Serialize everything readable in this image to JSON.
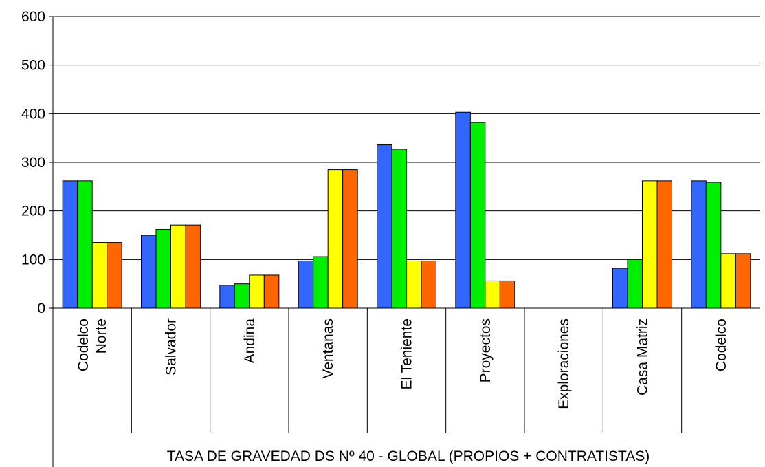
{
  "chart_data": {
    "type": "bar",
    "title": "",
    "xlabel": "TASA DE GRAVEDAD DS Nº 40 - GLOBAL (PROPIOS + CONTRATISTAS)",
    "ylabel": "",
    "ylim": [
      0,
      600
    ],
    "yticks": [
      0,
      100,
      200,
      300,
      400,
      500,
      600
    ],
    "grid": "horizontal",
    "legend": "none",
    "categories": [
      [
        "Codelco",
        "Norte"
      ],
      [
        "Salvador"
      ],
      [
        "Andina"
      ],
      [
        "Ventanas"
      ],
      [
        "El Teniente"
      ],
      [
        "Proyectos"
      ],
      [
        "Exploraciones"
      ],
      [
        "Casa Matriz"
      ],
      [
        "Codelco"
      ]
    ],
    "series": [
      {
        "color": "#3366ff",
        "values": [
          262,
          150,
          47,
          97,
          336,
          403,
          0,
          82,
          262
        ]
      },
      {
        "color": "#00ee00",
        "values": [
          262,
          162,
          50,
          106,
          327,
          382,
          0,
          100,
          259
        ]
      },
      {
        "color": "#ffff00",
        "values": [
          135,
          171,
          68,
          285,
          97,
          56,
          0,
          262,
          112
        ]
      },
      {
        "color": "#ff6600",
        "values": [
          135,
          171,
          68,
          285,
          97,
          56,
          0,
          262,
          112
        ]
      }
    ]
  }
}
